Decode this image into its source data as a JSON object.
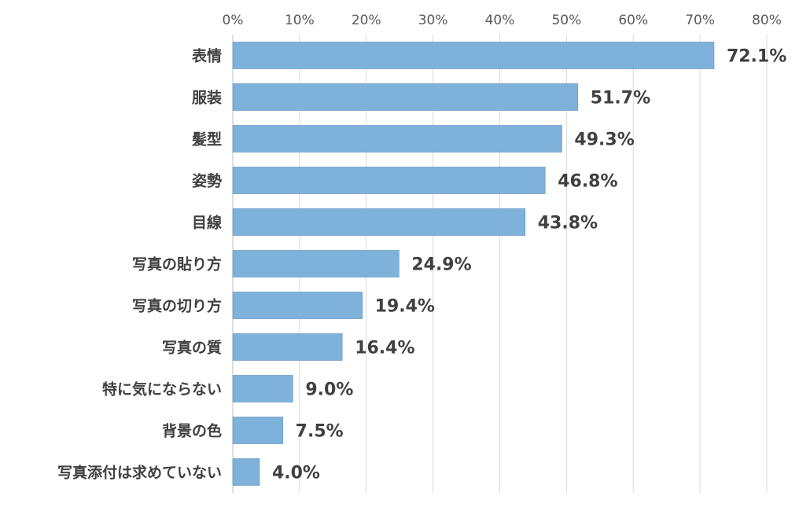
{
  "chart_data": {
    "type": "bar",
    "orientation": "horizontal",
    "categories": [
      "表情",
      "服装",
      "髪型",
      "姿勢",
      "目線",
      "写真の貼り方",
      "写真の切り方",
      "写真の質",
      "特に気にならない",
      "背景の色",
      "写真添付は求めていない"
    ],
    "values": [
      72.1,
      51.7,
      49.3,
      46.8,
      43.8,
      24.9,
      19.4,
      16.4,
      9.0,
      7.5,
      4.0
    ],
    "data_labels": [
      "72.1%",
      "51.7%",
      "49.3%",
      "46.8%",
      "43.8%",
      "24.9%",
      "19.4%",
      "16.4%",
      "9.0%",
      "7.5%",
      "4.0%"
    ],
    "xlim": [
      0,
      80
    ],
    "x_ticks": [
      "0%",
      "10%",
      "20%",
      "30%",
      "40%",
      "50%",
      "60%",
      "70%",
      "80%"
    ],
    "x_axis_position": "top",
    "grid": true,
    "legend": "none",
    "title": "",
    "xlabel": "",
    "ylabel": "",
    "bar_color": "#7fb2da",
    "bar_border_color": "#5b8fc4"
  }
}
